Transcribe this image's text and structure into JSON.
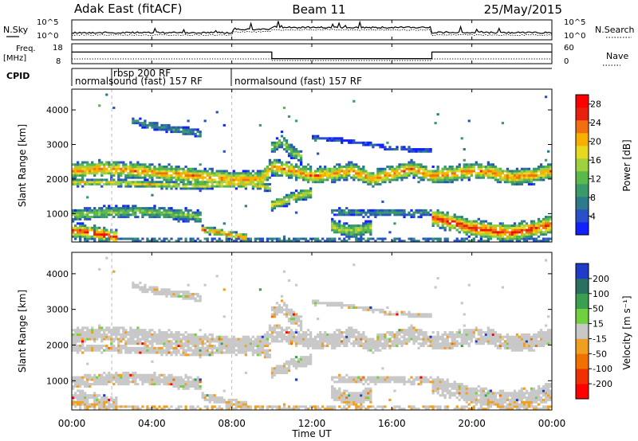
{
  "header": {
    "station": "Adak East (fitACF)",
    "beam": "Beam 11",
    "date": "25/May/2015"
  },
  "top_panels": {
    "nsky_label": "N.Sky",
    "nsearch_label": "N.Search",
    "noise_ticks": [
      "10^5",
      "10^0"
    ],
    "freq_label": "Freq.",
    "freq_unit": "[MHz]",
    "freq_ticks": [
      "18",
      "8"
    ],
    "nave_label": "Nave",
    "nave_ticks": [
      "60",
      "0"
    ],
    "cpid_label": "CPID",
    "cpid_segments": [
      {
        "label": "normalsound (fast) 157 RF",
        "start": 0.0,
        "end": 2.0
      },
      {
        "label": "rbsp 200 RF",
        "start": 2.0,
        "end": 8.0
      },
      {
        "label": "normalsound (fast) 157 RF",
        "start": 8.0,
        "end": 24.0
      }
    ]
  },
  "x_axis": {
    "label": "Time UT",
    "ticks": [
      "00:00",
      "04:00",
      "08:00",
      "12:00",
      "16:00",
      "20:00",
      "00:00"
    ],
    "range": [
      0,
      24
    ]
  },
  "chart_data": [
    {
      "type": "heatmap",
      "name": "power",
      "ylabel": "Slant Range [km]",
      "yticks": [
        "1000",
        "2000",
        "3000",
        "4000"
      ],
      "ylim": [
        180,
        4600
      ],
      "colorbar": {
        "label": "Power [dB]",
        "ticks": [
          "4",
          "8",
          "12",
          "16",
          "20",
          "24",
          "28"
        ],
        "range": [
          0,
          30
        ],
        "colors": [
          "#1020ff",
          "#2850c8",
          "#2e7a8c",
          "#3a9a6a",
          "#5ab84c",
          "#9ed040",
          "#e8d820",
          "#f8b000",
          "#f07010",
          "#e82010",
          "#ff0000"
        ]
      },
      "echo_bands": [
        {
          "t": [
            0.0,
            1.5,
            3.0,
            5.0,
            7.0,
            8.0,
            9.5,
            10.0,
            11.0,
            12.0,
            13.0,
            14.0,
            15.0,
            16.0,
            17.0,
            18.0,
            19.0,
            20.0,
            21.0,
            22.0,
            23.0,
            24.0
          ],
          "r": [
            2250,
            2300,
            2250,
            2150,
            2050,
            2000,
            2000,
            2350,
            2250,
            2100,
            2150,
            2250,
            2000,
            2150,
            2300,
            2100,
            2150,
            2250,
            2200,
            2050,
            2100,
            2250
          ],
          "width": 450,
          "peak": 23
        },
        {
          "t": [
            0.0,
            2.0,
            4.0,
            6.0,
            8.0,
            9.5,
            10.0
          ],
          "r": [
            1900,
            1900,
            1850,
            1800,
            1850,
            1800,
            1750
          ],
          "width": 200,
          "peak": 20
        },
        {
          "t": [
            0.0,
            1.0,
            2.0,
            3.0,
            4.0,
            5.0,
            6.0,
            6.5
          ],
          "r": [
            950,
            1000,
            1050,
            1050,
            1050,
            1000,
            950,
            900
          ],
          "width": 320,
          "peak": 15
        },
        {
          "t": [
            0.0,
            0.5,
            1.0,
            1.5,
            2.0,
            2.3
          ],
          "r": [
            500,
            500,
            450,
            400,
            350,
            300
          ],
          "width": 380,
          "peak": 28
        },
        {
          "t": [
            6.5,
            7.0,
            7.5,
            8.0,
            8.8
          ],
          "r": [
            550,
            500,
            450,
            380,
            300
          ],
          "width": 220,
          "peak": 24
        },
        {
          "t": [
            10.0,
            10.5,
            11.0,
            11.5,
            12.0
          ],
          "r": [
            1250,
            1350,
            1450,
            1550,
            1600
          ],
          "width": 300,
          "peak": 19
        },
        {
          "t": [
            10.0,
            10.5,
            11.0,
            11.5
          ],
          "r": [
            2900,
            3100,
            2800,
            2650
          ],
          "width": 380,
          "peak": 14
        },
        {
          "t": [
            13.0,
            14.0,
            15.0,
            16.0,
            17.0,
            18.0
          ],
          "r": [
            1050,
            1050,
            1000,
            1050,
            1000,
            1050
          ],
          "width": 200,
          "peak": 10
        },
        {
          "t": [
            13.0,
            13.5,
            14.0,
            14.5,
            15.0
          ],
          "r": [
            650,
            550,
            500,
            550,
            600
          ],
          "width": 380,
          "peak": 17
        },
        {
          "t": [
            18.0,
            19.0,
            20.0,
            21.0,
            22.0,
            23.0,
            24.0
          ],
          "r": [
            900,
            750,
            600,
            500,
            450,
            550,
            700
          ],
          "width": 480,
          "peak": 27
        },
        {
          "t": [
            3.0,
            4.0,
            5.0,
            6.0,
            6.5
          ],
          "r": [
            3700,
            3550,
            3450,
            3350,
            3300
          ],
          "width": 220,
          "peak": 9
        },
        {
          "t": [
            12.0,
            14.0,
            16.0,
            18.0
          ],
          "r": [
            3200,
            3100,
            2900,
            2800
          ],
          "width": 120,
          "peak": 5
        }
      ]
    },
    {
      "type": "heatmap",
      "name": "velocity",
      "ylabel": "Slant Range [km]",
      "yticks": [
        "1000",
        "2000",
        "3000",
        "4000"
      ],
      "ylim": [
        180,
        4600
      ],
      "colorbar": {
        "label": "Velocity [m s⁻¹]",
        "ticks": [
          "200",
          "100",
          "50",
          "15",
          "-15",
          "-50",
          "-100",
          "-200"
        ],
        "range": [
          -250,
          250
        ],
        "colors": [
          "#1e3cc8",
          "#2a7060",
          "#3aa050",
          "#70d040",
          "#c8c8c8",
          "#f0a020",
          "#f07000",
          "#f03000",
          "#ff0000"
        ]
      }
    }
  ]
}
